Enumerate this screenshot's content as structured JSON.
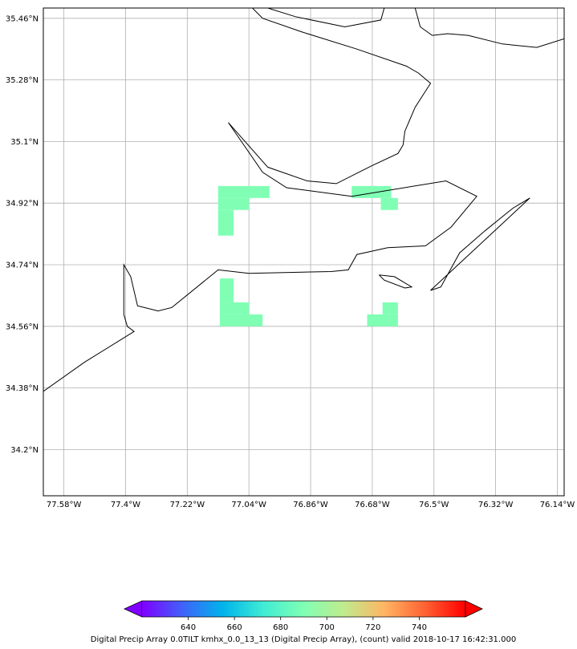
{
  "map": {
    "lat_labels": [
      "35.46°N",
      "35.28°N",
      "35.1°N",
      "34.92°N",
      "34.74°N",
      "34.56°N",
      "34.38°N",
      "34.2°N"
    ],
    "lon_labels": [
      "77.58°W",
      "77.4°W",
      "77.22°W",
      "77.04°W",
      "76.86°W",
      "76.68°W",
      "76.5°W",
      "76.32°W",
      "76.14°W"
    ],
    "lat_values": [
      35.46,
      35.28,
      35.1,
      34.92,
      34.74,
      34.56,
      34.38,
      34.2
    ],
    "lon_values": [
      -77.58,
      -77.4,
      -77.22,
      -77.04,
      -76.86,
      -76.68,
      -76.5,
      -76.32,
      -76.14
    ],
    "lon_range": [
      -77.64,
      -76.12
    ],
    "lat_range": [
      34.065,
      35.49
    ],
    "grid": true,
    "data_color": "#80ffb4",
    "cells": [
      {
        "lon0": -77.13,
        "lat0": 34.935,
        "lon1": -76.98,
        "lat1": 34.97
      },
      {
        "lon0": -77.13,
        "lat0": 34.9,
        "lon1": -77.04,
        "lat1": 34.935
      },
      {
        "lon0": -77.13,
        "lat0": 34.825,
        "lon1": -77.085,
        "lat1": 34.9
      },
      {
        "lon0": -76.74,
        "lat0": 34.935,
        "lon1": -76.625,
        "lat1": 34.97
      },
      {
        "lon0": -76.655,
        "lat0": 34.9,
        "lon1": -76.605,
        "lat1": 34.935
      },
      {
        "lon0": -77.125,
        "lat0": 34.63,
        "lon1": -77.085,
        "lat1": 34.7
      },
      {
        "lon0": -77.125,
        "lat0": 34.595,
        "lon1": -77.04,
        "lat1": 34.63
      },
      {
        "lon0": -77.125,
        "lat0": 34.56,
        "lon1": -77.0,
        "lat1": 34.595
      },
      {
        "lon0": -76.65,
        "lat0": 34.595,
        "lon1": -76.605,
        "lat1": 34.63
      },
      {
        "lon0": -76.695,
        "lat0": 34.56,
        "lon1": -76.605,
        "lat1": 34.595
      }
    ],
    "coastlines": [
      [
        [
          -77.64,
          34.37
        ],
        [
          -77.52,
          34.455
        ],
        [
          -77.375,
          34.545
        ],
        [
          -77.395,
          34.56
        ],
        [
          -77.405,
          34.595
        ],
        [
          -77.405,
          34.74
        ],
        [
          -77.385,
          34.705
        ],
        [
          -77.365,
          34.62
        ],
        [
          -77.305,
          34.605
        ],
        [
          -77.265,
          34.615
        ],
        [
          -77.13,
          34.725
        ],
        [
          -77.04,
          34.715
        ],
        [
          -76.8,
          34.72
        ],
        [
          -76.75,
          34.725
        ],
        [
          -76.725,
          34.77
        ],
        [
          -76.635,
          34.79
        ],
        [
          -76.525,
          34.795
        ],
        [
          -76.45,
          34.85
        ],
        [
          -76.375,
          34.94
        ],
        [
          -76.465,
          34.985
        ],
        [
          -76.74,
          34.94
        ],
        [
          -76.93,
          34.965
        ],
        [
          -77.0,
          35.01
        ],
        [
          -77.1,
          35.155
        ]
      ],
      [
        [
          -77.1,
          35.155
        ],
        [
          -76.985,
          35.025
        ],
        [
          -76.87,
          34.985
        ],
        [
          -76.785,
          34.977
        ],
        [
          -76.68,
          35.03
        ],
        [
          -76.605,
          35.065
        ],
        [
          -76.59,
          35.09
        ],
        [
          -76.585,
          35.13
        ],
        [
          -76.555,
          35.2
        ],
        [
          -76.51,
          35.27
        ],
        [
          -76.545,
          35.3
        ],
        [
          -76.58,
          35.32
        ],
        [
          -76.725,
          35.37
        ],
        [
          -76.885,
          35.42
        ],
        [
          -77.0,
          35.46
        ],
        [
          -77.03,
          35.49
        ]
      ],
      [
        [
          -76.985,
          35.49
        ],
        [
          -76.905,
          35.465
        ],
        [
          -76.76,
          35.435
        ],
        [
          -76.655,
          35.455
        ],
        [
          -76.645,
          35.49
        ]
      ],
      [
        [
          -76.555,
          35.49
        ],
        [
          -76.54,
          35.435
        ],
        [
          -76.505,
          35.41
        ],
        [
          -76.46,
          35.415
        ],
        [
          -76.4,
          35.41
        ],
        [
          -76.3,
          35.385
        ],
        [
          -76.2,
          35.375
        ],
        [
          -76.12,
          35.4
        ]
      ],
      [
        [
          -76.66,
          34.71
        ],
        [
          -76.615,
          34.705
        ],
        [
          -76.565,
          34.675
        ],
        [
          -76.585,
          34.672
        ],
        [
          -76.645,
          34.695
        ],
        [
          -76.66,
          34.71
        ]
      ],
      [
        [
          -76.22,
          34.935
        ],
        [
          -76.51,
          34.665
        ],
        [
          -76.48,
          34.675
        ],
        [
          -76.425,
          34.775
        ],
        [
          -76.35,
          34.84
        ],
        [
          -76.27,
          34.905
        ],
        [
          -76.22,
          34.935
        ]
      ]
    ]
  },
  "colorbar": {
    "ticks": [
      "640",
      "660",
      "680",
      "700",
      "720",
      "740"
    ],
    "tick_values": [
      640,
      660,
      680,
      700,
      720,
      740
    ],
    "range": [
      620,
      760
    ],
    "caption": "Digital Precip Array 0.0TILT kmhx_0.0_13_13 (Digital Precip Array), (count) valid 2018-10-17 16:42:31.000"
  }
}
